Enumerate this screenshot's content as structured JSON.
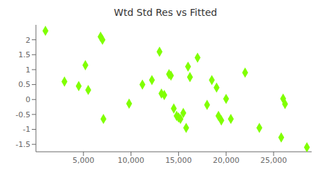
{
  "chart_data": {
    "type": "scatter",
    "title": "Wtd Std Res vs Fitted",
    "x": [
      1000,
      3000,
      4500,
      5200,
      5500,
      6800,
      7000,
      7100,
      9800,
      11200,
      12200,
      13000,
      13200,
      13500,
      14000,
      14200,
      14500,
      14800,
      15000,
      15200,
      15500,
      15800,
      16000,
      16200,
      17000,
      18000,
      18500,
      19000,
      19200,
      19500,
      20000,
      20500,
      22000,
      23500,
      25800,
      26000,
      26200,
      28500
    ],
    "values": [
      2.3,
      0.6,
      0.45,
      1.15,
      0.32,
      2.1,
      2.0,
      -0.65,
      -0.14,
      0.5,
      0.65,
      1.6,
      0.2,
      0.15,
      0.85,
      0.8,
      -0.3,
      -0.55,
      -0.6,
      -0.65,
      -0.45,
      -0.95,
      1.1,
      0.75,
      1.4,
      -0.18,
      0.65,
      0.4,
      -0.55,
      -0.7,
      0.02,
      -0.65,
      0.9,
      -0.95,
      -1.27,
      0.03,
      -0.15,
      -1.6
    ],
    "color": "#80ff00",
    "marker": "diamond",
    "xlim": [
      0,
      29000
    ],
    "ylim": [
      -1.75,
      2.5
    ],
    "xticks": [
      {
        "value": 5000,
        "label": "5,000"
      },
      {
        "value": 10000,
        "label": "10,000"
      },
      {
        "value": 15000,
        "label": "15,000"
      },
      {
        "value": 20000,
        "label": "20,000"
      },
      {
        "value": 25000,
        "label": "25,000"
      }
    ],
    "yticks": [
      -1.5,
      -1,
      -0.5,
      0,
      0.5,
      1,
      1.5,
      2
    ],
    "grid": false
  }
}
